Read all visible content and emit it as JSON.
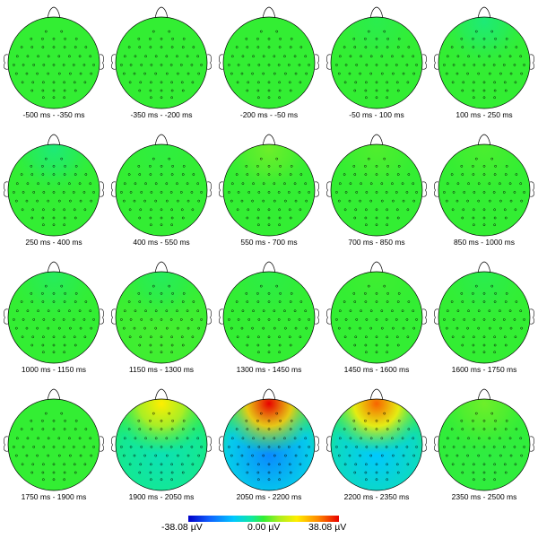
{
  "topomaps": [
    {
      "window": "-500 ms - -350 ms",
      "frontal": 0.0,
      "posterior": 0.0
    },
    {
      "window": "-350 ms - -200 ms",
      "frontal": 0.0,
      "posterior": 0.0
    },
    {
      "window": "-200 ms - -50 ms",
      "frontal": 0.0,
      "posterior": 0.0
    },
    {
      "window": "-50 ms - 100 ms",
      "frontal": -0.04,
      "posterior": 0.0
    },
    {
      "window": "100 ms - 250 ms",
      "frontal": -0.1,
      "posterior": 0.0
    },
    {
      "window": "250 ms - 400 ms",
      "frontal": -0.1,
      "posterior": 0.0
    },
    {
      "window": "400 ms - 550 ms",
      "frontal": -0.02,
      "posterior": 0.0
    },
    {
      "window": "550 ms - 700 ms",
      "frontal": 0.1,
      "posterior": 0.0
    },
    {
      "window": "700 ms - 850 ms",
      "frontal": 0.05,
      "posterior": 0.0
    },
    {
      "window": "850 ms - 1000 ms",
      "frontal": 0.04,
      "posterior": 0.0
    },
    {
      "window": "1000 ms - 1150 ms",
      "frontal": -0.06,
      "posterior": 0.0
    },
    {
      "window": "1150 ms - 1300 ms",
      "frontal": -0.06,
      "posterior": 0.03
    },
    {
      "window": "1300 ms - 1450 ms",
      "frontal": -0.03,
      "posterior": 0.0
    },
    {
      "window": "1450 ms - 1600 ms",
      "frontal": 0.02,
      "posterior": 0.0
    },
    {
      "window": "1600 ms - 1750 ms",
      "frontal": -0.04,
      "posterior": 0.0
    },
    {
      "window": "1750 ms - 1900 ms",
      "frontal": 0.0,
      "posterior": 0.0
    },
    {
      "window": "1900 ms - 2050 ms",
      "frontal": 0.45,
      "posterior": -0.22
    },
    {
      "window": "2050 ms - 2200 ms",
      "frontal": 1.0,
      "posterior": -0.6
    },
    {
      "window": "2200 ms - 2350 ms",
      "frontal": 0.8,
      "posterior": -0.42
    },
    {
      "window": "2350 ms - 2500 ms",
      "frontal": 0.1,
      "posterior": -0.02
    }
  ],
  "colorbar": {
    "min_label": "-38.08 µV",
    "mid_label": "0.00 µV",
    "max_label": "38.08 µV",
    "colormap": "jet"
  }
}
